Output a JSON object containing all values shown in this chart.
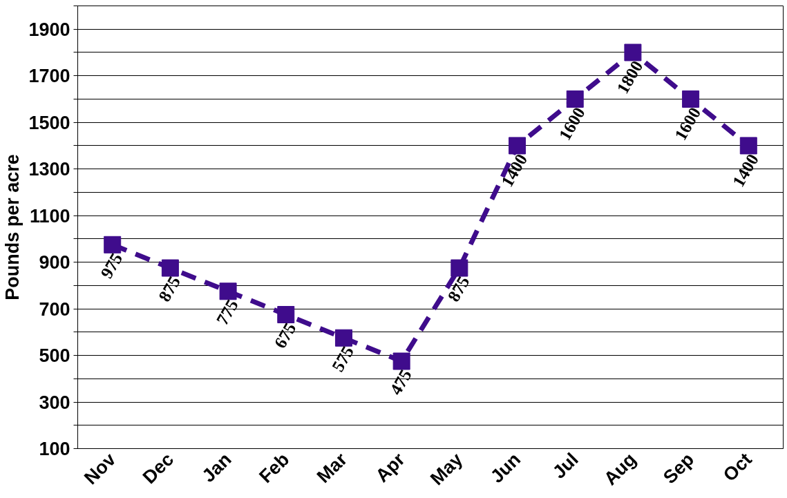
{
  "chart_data": {
    "type": "line",
    "ylabel": "Pounds per acre",
    "categories": [
      "Nov",
      "Dec",
      "Jan",
      "Feb",
      "Mar",
      "Apr",
      "May",
      "Jun",
      "Jul",
      "Aug",
      "Sep",
      "Oct"
    ],
    "series": [
      {
        "color": "#3f0c8c",
        "values": [
          975,
          875,
          775,
          675,
          575,
          475,
          875,
          1400,
          1600,
          1800,
          1600,
          1400
        ]
      }
    ],
    "ylim": [
      100,
      2000
    ],
    "yticks": [
      100,
      {
        "value": 200,
        "label": null
      },
      300,
      {
        "value": 400,
        "label": null
      },
      500,
      {
        "value": 600,
        "label": null
      },
      700,
      {
        "value": 800,
        "label": null
      },
      900,
      {
        "value": 1000,
        "label": null
      },
      1100,
      {
        "value": 1200,
        "label": null
      },
      1300,
      {
        "value": 1400,
        "label": null
      },
      1500,
      {
        "value": 1600,
        "label": null
      },
      1700,
      {
        "value": 1800,
        "label": null
      },
      1900,
      {
        "value": 2000,
        "label": null
      }
    ],
    "grid": "y",
    "marker": "square",
    "line_style": "dashed",
    "data_labels": true
  }
}
